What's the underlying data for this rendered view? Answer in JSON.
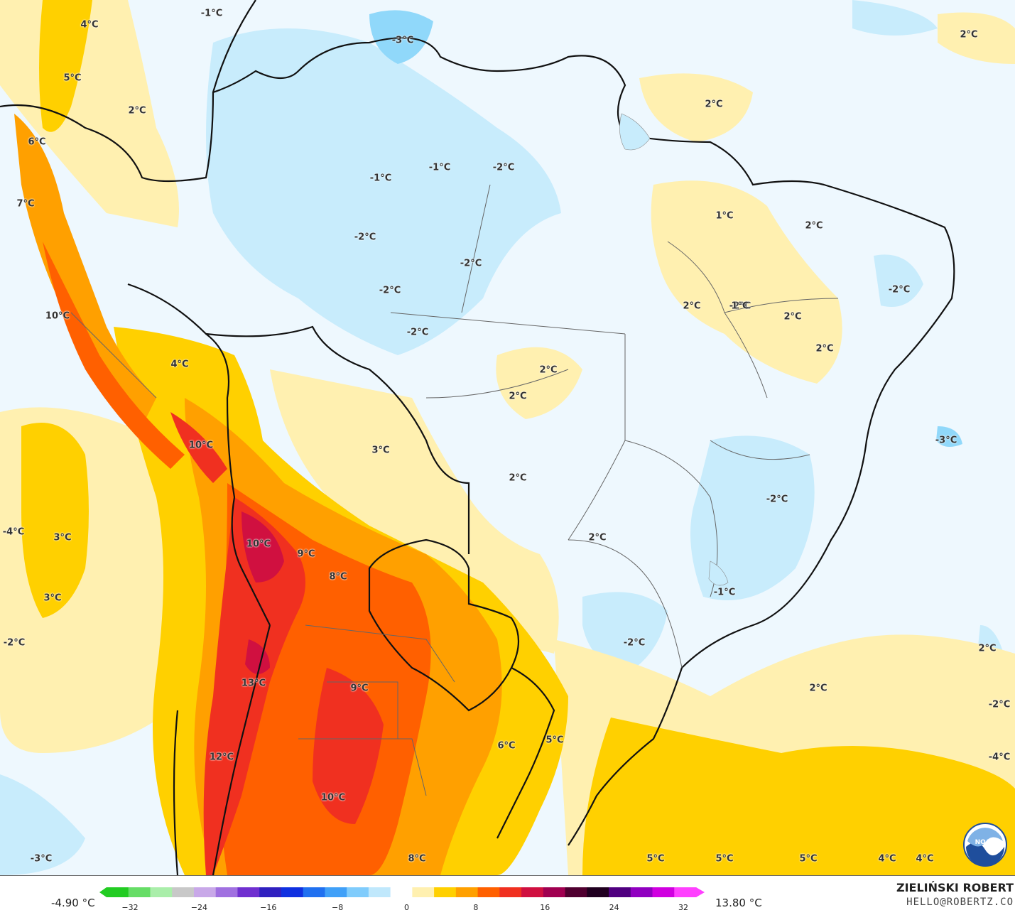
{
  "legend": {
    "min_label": "-4.90 °C",
    "max_label": "13.80 °C",
    "ticks": [
      "−32",
      "−24",
      "−16",
      "−8",
      "0",
      "8",
      "16",
      "24",
      "32"
    ],
    "colors": [
      "#22cc22",
      "#66dd66",
      "#aaeeaa",
      "#c8c8c8",
      "#c8a8e8",
      "#a070e0",
      "#7030d0",
      "#3020c0",
      "#1030e0",
      "#2070f0",
      "#40a0f8",
      "#80ccfc",
      "#c0e8fc",
      "#ffffff",
      "#fff0b0",
      "#ffd000",
      "#ffa000",
      "#ff6000",
      "#f03020",
      "#d01040",
      "#a00050",
      "#500030",
      "#200020",
      "#500080",
      "#9000c0",
      "#d000e0",
      "#ff40ff"
    ]
  },
  "credit": {
    "author": "ZIELIŃSKI ROBERT",
    "email": "HELLO@ROBERTZ.CO"
  },
  "logo": {
    "icon": "noaa-logo-icon",
    "text": "NOAA"
  },
  "labels": [
    {
      "text": "-1°C"
    },
    {
      "text": "-3°C"
    },
    {
      "text": "2°C"
    },
    {
      "text": "4°C"
    },
    {
      "text": "5°C"
    },
    {
      "text": "2°C"
    },
    {
      "text": "2°C"
    },
    {
      "text": "6°C"
    },
    {
      "text": "-1°C"
    },
    {
      "text": "-1°C"
    },
    {
      "text": "-2°C"
    },
    {
      "text": "7°C"
    },
    {
      "text": "1°C"
    },
    {
      "text": "2°C"
    },
    {
      "text": "-2°C"
    },
    {
      "text": "-2°C"
    },
    {
      "text": "-2°C"
    },
    {
      "text": "-2°C"
    },
    {
      "text": "10°C"
    },
    {
      "text": "-2°C"
    },
    {
      "text": "-2°C"
    },
    {
      "text": "2°C"
    },
    {
      "text": "1°C"
    },
    {
      "text": "2°C"
    },
    {
      "text": "2°C"
    },
    {
      "text": "4°C"
    },
    {
      "text": "2°C"
    },
    {
      "text": "2°C"
    },
    {
      "text": "10°C"
    },
    {
      "text": "3°C"
    },
    {
      "text": "-3°C"
    },
    {
      "text": "2°C"
    },
    {
      "text": "-2°C"
    },
    {
      "text": "-4°C"
    },
    {
      "text": "3°C"
    },
    {
      "text": "10°C"
    },
    {
      "text": "9°C"
    },
    {
      "text": "2°C"
    },
    {
      "text": "8°C"
    },
    {
      "text": "-1°C"
    },
    {
      "text": "3°C"
    },
    {
      "text": "-2°C"
    },
    {
      "text": "-2°C"
    },
    {
      "text": "2°C"
    },
    {
      "text": "13°C"
    },
    {
      "text": "9°C"
    },
    {
      "text": "2°C"
    },
    {
      "text": "-2°C"
    },
    {
      "text": "6°C"
    },
    {
      "text": "5°C"
    },
    {
      "text": "12°C"
    },
    {
      "text": "-4°C"
    },
    {
      "text": "10°C"
    },
    {
      "text": "-3°C"
    },
    {
      "text": "8°C"
    },
    {
      "text": "5°C"
    },
    {
      "text": "5°C"
    },
    {
      "text": "5°C"
    },
    {
      "text": "4°C"
    },
    {
      "text": "4°C"
    }
  ]
}
